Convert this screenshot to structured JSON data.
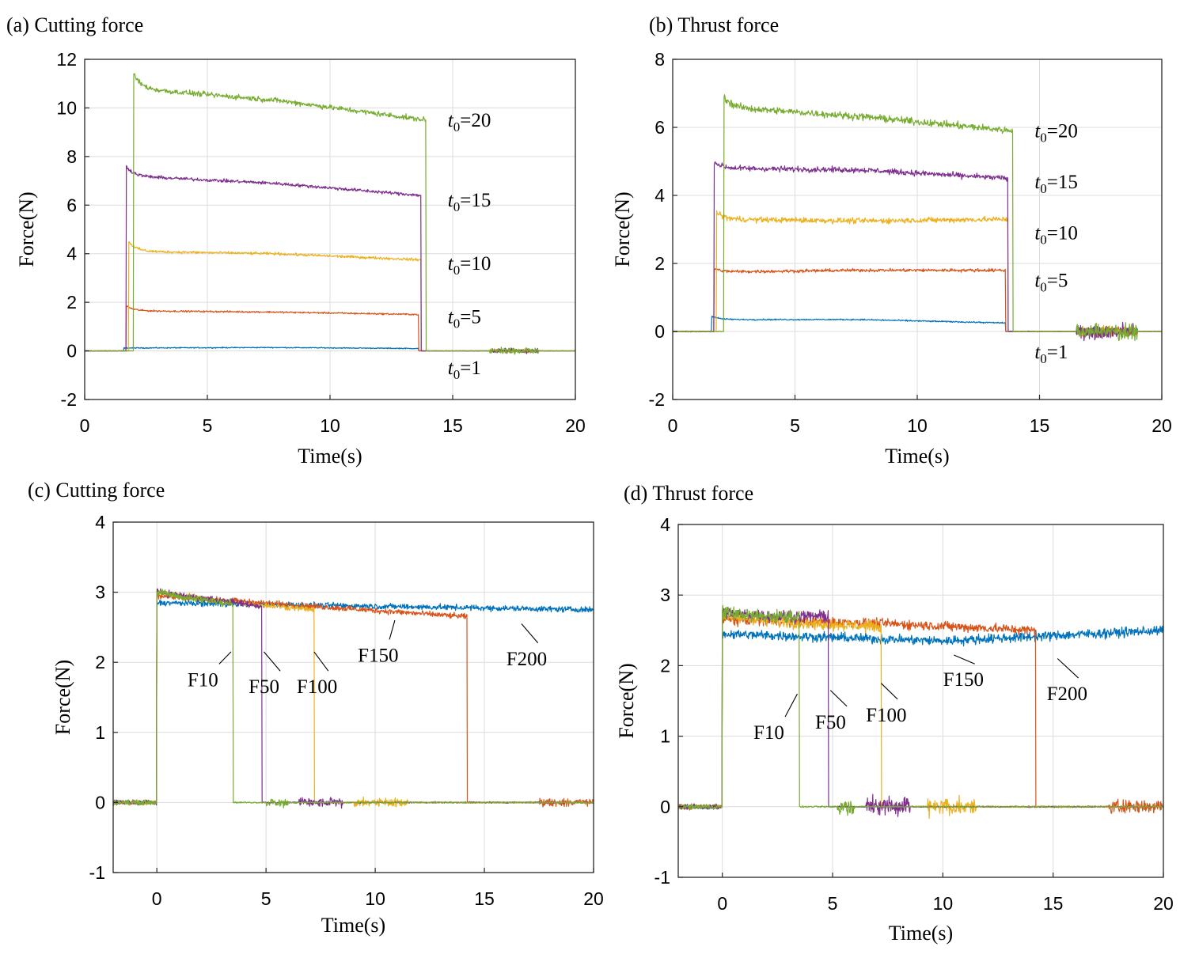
{
  "colors": {
    "blue": "#0072BD",
    "orange": "#D95319",
    "yellow": "#EDB120",
    "purple": "#7E2F8E",
    "green": "#77AC30"
  },
  "chart_data": [
    {
      "id": "a",
      "type": "line",
      "title": "(a) Cutting force",
      "xlabel": "Time(s)",
      "ylabel": "Force(N)",
      "xlim": [
        0,
        20
      ],
      "ylim": [
        -2,
        12
      ],
      "xticks": [
        0,
        5,
        10,
        15,
        20
      ],
      "yticks": [
        -2,
        0,
        2,
        4,
        6,
        8,
        10,
        12
      ],
      "grid": true,
      "series": [
        {
          "name": "t0=1",
          "label_main": "t",
          "label_sub": "0",
          "label_rest": "=1",
          "color": "blue",
          "start": 1.6,
          "end": 13.6,
          "plateau": [
            0.12,
            0.14,
            0.1
          ],
          "noise": 0.03,
          "spike": 0.0,
          "tail": [
            16.5,
            18.5
          ],
          "tail_amp": 0.08
        },
        {
          "name": "t0=5",
          "label_main": "t",
          "label_sub": "0",
          "label_rest": "=5",
          "color": "orange",
          "start": 1.7,
          "end": 13.6,
          "plateau": [
            1.65,
            1.6,
            1.5
          ],
          "noise": 0.05,
          "spike": 0.2,
          "tail": [
            16.5,
            18.5
          ],
          "tail_amp": 0.1
        },
        {
          "name": "t0=10",
          "label_main": "t",
          "label_sub": "0",
          "label_rest": "=10",
          "color": "yellow",
          "start": 1.8,
          "end": 13.7,
          "plateau": [
            4.1,
            4.0,
            3.75
          ],
          "noise": 0.08,
          "spike": 0.4,
          "tail": [
            16.5,
            18.5
          ],
          "tail_amp": 0.12
        },
        {
          "name": "t0=15",
          "label_main": "t",
          "label_sub": "0",
          "label_rest": "=15",
          "color": "purple",
          "start": 1.7,
          "end": 13.7,
          "plateau": [
            7.2,
            6.9,
            6.4
          ],
          "noise": 0.1,
          "spike": 0.4,
          "tail": [
            16.5,
            18.5
          ],
          "tail_amp": 0.15
        },
        {
          "name": "t0=20",
          "label_main": "t",
          "label_sub": "0",
          "label_rest": "=20",
          "color": "green",
          "start": 2.0,
          "end": 13.9,
          "plateau": [
            10.8,
            10.3,
            9.5
          ],
          "noise": 0.16,
          "spike": 0.6,
          "tail": [
            16.5,
            18.5
          ],
          "tail_amp": 0.2
        }
      ],
      "annotations": [
        {
          "series": 4,
          "x": 14.8,
          "y": 9.5
        },
        {
          "series": 3,
          "x": 14.8,
          "y": 6.2
        },
        {
          "series": 2,
          "x": 14.8,
          "y": 3.6
        },
        {
          "series": 1,
          "x": 14.8,
          "y": 1.4
        },
        {
          "series": 0,
          "x": 14.8,
          "y": -0.7
        }
      ]
    },
    {
      "id": "b",
      "type": "line",
      "title": "(b) Thrust force",
      "xlabel": "Time(s)",
      "ylabel": "Force(N)",
      "xlim": [
        0,
        20
      ],
      "ylim": [
        -2,
        8
      ],
      "xticks": [
        0,
        5,
        10,
        15,
        20
      ],
      "yticks": [
        -2,
        0,
        2,
        4,
        6,
        8
      ],
      "grid": true,
      "series": [
        {
          "name": "t0=1",
          "label_main": "t",
          "label_sub": "0",
          "label_rest": "=1",
          "color": "blue",
          "start": 1.6,
          "end": 13.6,
          "plateau": [
            0.35,
            0.35,
            0.25
          ],
          "noise": 0.03,
          "spike": 0.1,
          "tail": [
            16.5,
            19.0
          ],
          "tail_amp": 0.15
        },
        {
          "name": "t0=5",
          "label_main": "t",
          "label_sub": "0",
          "label_rest": "=5",
          "color": "orange",
          "start": 1.7,
          "end": 13.6,
          "plateau": [
            1.75,
            1.8,
            1.8
          ],
          "noise": 0.07,
          "spike": 0.1,
          "tail": [
            16.5,
            19.0
          ],
          "tail_amp": 0.2
        },
        {
          "name": "t0=10",
          "label_main": "t",
          "label_sub": "0",
          "label_rest": "=10",
          "color": "yellow",
          "start": 1.8,
          "end": 13.7,
          "plateau": [
            3.3,
            3.25,
            3.3
          ],
          "noise": 0.12,
          "spike": 0.2,
          "tail": [
            16.5,
            19.0
          ],
          "tail_amp": 0.25
        },
        {
          "name": "t0=15",
          "label_main": "t",
          "label_sub": "0",
          "label_rest": "=15",
          "color": "purple",
          "start": 1.7,
          "end": 13.7,
          "plateau": [
            4.8,
            4.75,
            4.5
          ],
          "noise": 0.12,
          "spike": 0.2,
          "tail": [
            16.5,
            19.0
          ],
          "tail_amp": 0.3
        },
        {
          "name": "t0=20",
          "label_main": "t",
          "label_sub": "0",
          "label_rest": "=20",
          "color": "green",
          "start": 2.1,
          "end": 13.9,
          "plateau": [
            6.6,
            6.3,
            5.9
          ],
          "noise": 0.15,
          "spike": 0.3,
          "tail": [
            16.5,
            19.0
          ],
          "tail_amp": 0.35
        }
      ],
      "annotations": [
        {
          "series": 4,
          "x": 14.8,
          "y": 5.9
        },
        {
          "series": 3,
          "x": 14.8,
          "y": 4.4
        },
        {
          "series": 2,
          "x": 14.8,
          "y": 2.9
        },
        {
          "series": 1,
          "x": 14.8,
          "y": 1.5
        },
        {
          "series": 0,
          "x": 14.8,
          "y": -0.6
        }
      ]
    },
    {
      "id": "c",
      "type": "line",
      "title": "(c) Cutting force",
      "xlabel": "Time(s)",
      "ylabel": "Force(N)",
      "xlim": [
        -2,
        20
      ],
      "ylim": [
        -1,
        4
      ],
      "xticks": [
        0,
        5,
        10,
        15,
        20
      ],
      "yticks": [
        -1,
        0,
        1,
        2,
        3,
        4
      ],
      "grid": true,
      "series": [
        {
          "name": "F200",
          "label": "F200",
          "color": "blue",
          "start": 0.0,
          "end": 20.0,
          "plateau": [
            2.85,
            2.8,
            2.75
          ],
          "noise": 0.06,
          "tail": null,
          "tail_amp": 0
        },
        {
          "name": "F150",
          "label": "F150",
          "color": "orange",
          "start": 0.0,
          "end": 14.2,
          "plateau": [
            2.95,
            2.8,
            2.65
          ],
          "noise": 0.06,
          "tail": [
            17.5,
            20.0
          ],
          "tail_amp": 0.08
        },
        {
          "name": "F100",
          "label": "F100",
          "color": "yellow",
          "start": 0.0,
          "end": 7.2,
          "plateau": [
            3.0,
            2.85,
            2.75
          ],
          "noise": 0.06,
          "tail": [
            9.0,
            11.5
          ],
          "tail_amp": 0.09
        },
        {
          "name": "F50",
          "label": "F50",
          "color": "purple",
          "start": 0.0,
          "end": 4.8,
          "plateau": [
            3.0,
            2.9,
            2.8
          ],
          "noise": 0.07,
          "tail": [
            6.5,
            8.5
          ],
          "tail_amp": 0.1
        },
        {
          "name": "F10",
          "label": "F10",
          "color": "green",
          "start": 0.0,
          "end": 3.5,
          "plateau": [
            3.0,
            2.9,
            2.85
          ],
          "noise": 0.08,
          "tail": [
            5.0,
            6.0
          ],
          "tail_amp": 0.1
        }
      ],
      "annotations": [
        {
          "series": 4,
          "x": 2.2,
          "y": 1.75,
          "px": 3.4,
          "py": 2.15
        },
        {
          "series": 3,
          "x": 5.0,
          "y": 1.65,
          "px": 4.9,
          "py": 2.15
        },
        {
          "series": 2,
          "x": 7.2,
          "y": 1.65,
          "px": 7.2,
          "py": 2.15
        },
        {
          "series": 1,
          "x": 10.0,
          "y": 2.1,
          "px": 10.9,
          "py": 2.6
        },
        {
          "series": 0,
          "x": 16.8,
          "y": 2.05,
          "px": 16.7,
          "py": 2.55
        }
      ]
    },
    {
      "id": "d",
      "type": "line",
      "title": "(d) Thrust force",
      "xlabel": "Time(s)",
      "ylabel": "Force(N)",
      "xlim": [
        -2,
        20
      ],
      "ylim": [
        -1,
        4
      ],
      "xticks": [
        0,
        5,
        10,
        15,
        20
      ],
      "yticks": [
        -1,
        0,
        1,
        2,
        3,
        4
      ],
      "grid": true,
      "series": [
        {
          "name": "F200",
          "label": "F200",
          "color": "blue",
          "start": 0.0,
          "end": 20.0,
          "plateau": [
            2.45,
            2.35,
            2.5
          ],
          "noise": 0.1,
          "tail": null,
          "tail_amp": 0
        },
        {
          "name": "F150",
          "label": "F150",
          "color": "orange",
          "start": 0.0,
          "end": 14.2,
          "plateau": [
            2.65,
            2.6,
            2.5
          ],
          "noise": 0.1,
          "tail": [
            17.5,
            20.0
          ],
          "tail_amp": 0.15
        },
        {
          "name": "F100",
          "label": "F100",
          "color": "yellow",
          "start": 0.0,
          "end": 7.2,
          "plateau": [
            2.7,
            2.6,
            2.55
          ],
          "noise": 0.12,
          "tail": [
            9.3,
            11.5
          ],
          "tail_amp": 0.18
        },
        {
          "name": "F50",
          "label": "F50",
          "color": "purple",
          "start": 0.0,
          "end": 4.8,
          "plateau": [
            2.75,
            2.7,
            2.7
          ],
          "noise": 0.12,
          "tail": [
            6.5,
            8.5
          ],
          "tail_amp": 0.2
        },
        {
          "name": "F10",
          "label": "F10",
          "color": "green",
          "start": 0.0,
          "end": 3.5,
          "plateau": [
            2.75,
            2.7,
            2.7
          ],
          "noise": 0.14,
          "tail": [
            5.2,
            6.0
          ],
          "tail_amp": 0.15
        }
      ],
      "annotations": [
        {
          "series": 4,
          "x": 2.2,
          "y": 1.05,
          "px": 3.4,
          "py": 1.6
        },
        {
          "series": 3,
          "x": 5.0,
          "y": 1.2,
          "px": 4.9,
          "py": 1.65
        },
        {
          "series": 2,
          "x": 7.3,
          "y": 1.3,
          "px": 7.2,
          "py": 1.75
        },
        {
          "series": 1,
          "x": 10.8,
          "y": 1.8,
          "px": 10.5,
          "py": 2.15
        },
        {
          "series": 0,
          "x": 15.5,
          "y": 1.6,
          "px": 15.2,
          "py": 2.1
        }
      ]
    }
  ]
}
